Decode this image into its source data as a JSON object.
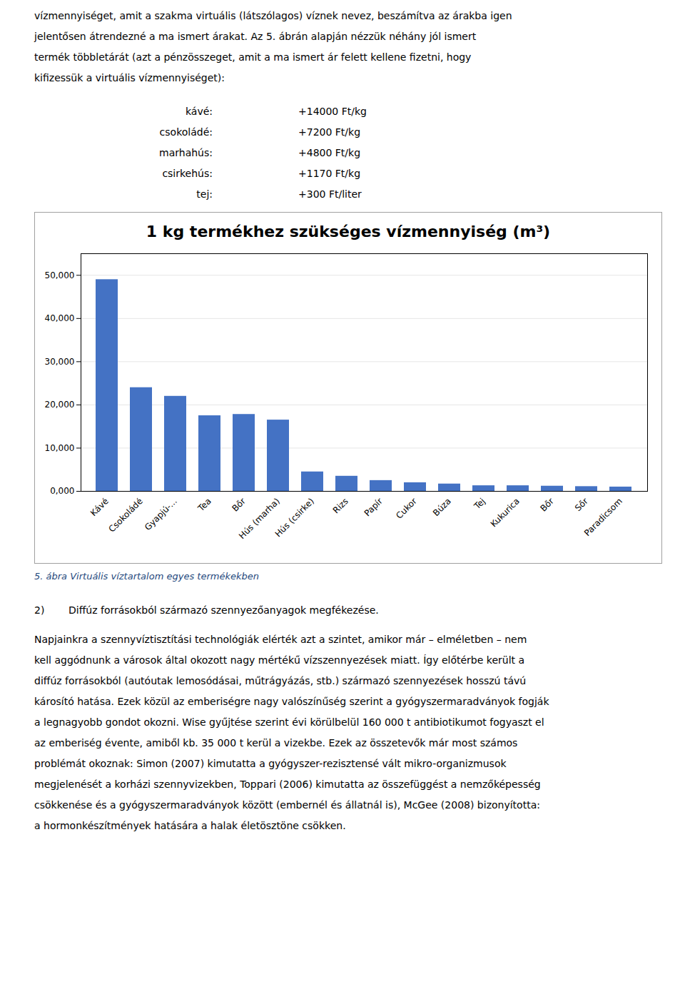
{
  "chart_data": {
    "type": "bar",
    "title": "1 kg termékhez szükséges vízmennyiség (m³)",
    "categories": [
      "Kávé",
      "Csokoládé",
      "Gyapjú-...",
      "Tea",
      "Bőr",
      "Hús (marha)",
      "Hús (csirke)",
      "Rizs",
      "Papír",
      "Cukor",
      "Búza",
      "Tej",
      "Kukurica",
      "Bőr",
      "Sőr",
      "Paradicsom"
    ],
    "values": [
      49000,
      24000,
      22000,
      17500,
      17800,
      16500,
      4500,
      3500,
      2500,
      2000,
      1700,
      1300,
      1300,
      1200,
      1100,
      1000
    ],
    "color": "#4472C4",
    "ylim": [
      0,
      55000
    ],
    "yticks": [
      {
        "value": 0,
        "label": "0,000"
      },
      {
        "value": 10000,
        "label": "10,000"
      },
      {
        "value": 20000,
        "label": "20,000"
      },
      {
        "value": 30000,
        "label": "30,000"
      },
      {
        "value": 40000,
        "label": "40,000"
      },
      {
        "value": 50000,
        "label": "50,000"
      }
    ],
    "grid": true,
    "caption": "5. ábra Virtuális víztartalom egyes termékekben"
  },
  "page_text": {
    "before": [
      "vízmennyiséget, amit a szakma virtuális (látszólagos) víznek nevez, beszámítva az árakba igen",
      "jelentősen átrendezné a ma ismert árakat. Az 5. ábrán alapján nézzük néhány jól ismert",
      "termék többletárát (azt a pénzösszeget, amit a ma ismert ár felett kellene fizetni, hogy",
      "kifizessük a virtuális vízmennyiséget):"
    ],
    "price_list": [
      [
        "kávé:",
        "+14000 Ft/kg"
      ],
      [
        "csokoládé:",
        "+7200 Ft/kg"
      ],
      [
        "marhahús:",
        "+4800 Ft/kg"
      ],
      [
        "csirkehús:",
        "+1170 Ft/kg"
      ],
      [
        "tej:",
        "+300 Ft/liter"
      ]
    ],
    "section_header": [
      "2)",
      "Diffúz forrásokból származó szennyezőanyagok megfékezése."
    ],
    "after": [
      "Napjainkra a szennyvíztisztítási technológiák elérték azt a szintet, amikor már – elméletben – nem",
      "kell aggódnunk a városok által okozott nagy mértékű vízszennyezések miatt. Így előtérbe került a",
      "diffúz forrásokból (autóutak lemosódásai, műtrágyázás, stb.) származó szennyezések hosszú távú",
      "károsító hatása. Ezek közül az emberiségre nagy valószínűség szerint a gyógyszermaradványok fogják",
      "a legnagyobb gondot okozni. Wise gyűjtése szerint évi körülbelül 160 000 t antibiotikumot fogyaszt el",
      "az emberiség évente, amiből kb. 35 000 t kerül a vizekbe. Ezek az összetevők már most számos",
      "problémát okoznak: Simon (2007) kimutatta a gyógyszer-rezisztensé vált mikro-organizmusok",
      "megjelenését a korházi szennyvizekben, Toppari (2006) kimutatta az összefüggést a nemzőképesség",
      "csökkenése és a gyógyszermaradványok között (embernél és állatnál is), McGee (2008) bizonyította:",
      "a hormonkészítmények hatására a halak életösztöne csökken."
    ]
  }
}
